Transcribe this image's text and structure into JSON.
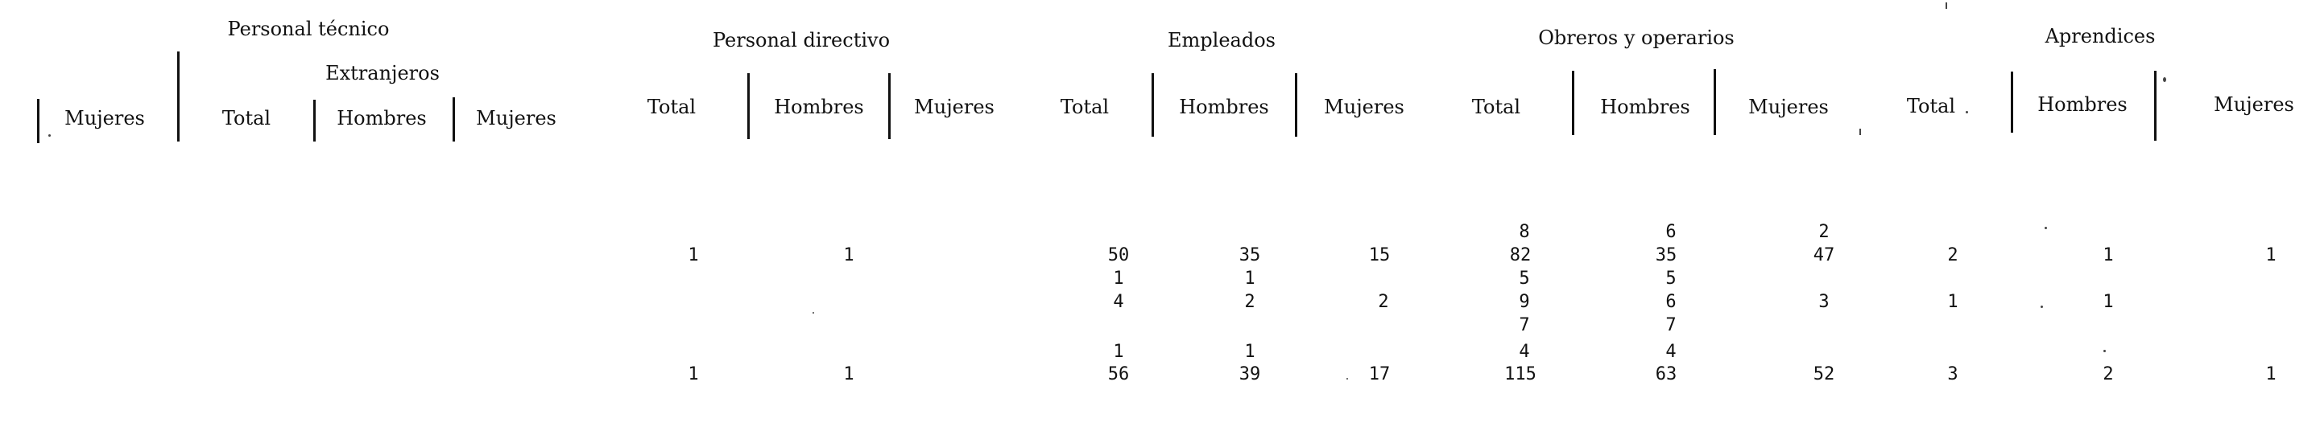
{
  "groups": {
    "personal_tecnico": "Personal técnico",
    "extranjeros": "Extranjeros",
    "personal_directivo": "Personal directivo",
    "empleados": "Empleados",
    "obreros": "Obreros y operarios",
    "aprendices": "Aprendices"
  },
  "columns": {
    "pt_mujeres": "Mujeres",
    "ext_total": "Total",
    "ext_hombres": "Hombres",
    "ext_mujeres": "Mujeres",
    "dir_total": "Total",
    "dir_hombres": "Hombres",
    "dir_mujeres": "Mujeres",
    "emp_total": "Total",
    "emp_hombres": "Hombres",
    "emp_mujeres": "Mujeres",
    "obr_total": "Total",
    "obr_hombres": "Hombres",
    "obr_mujeres": "Mujeres",
    "apr_total": "Total",
    "apr_hombres": "Hombres",
    "apr_mujeres": "Mujeres"
  },
  "rows": [
    {
      "obr_total": "8",
      "obr_hombres": "6",
      "obr_mujeres": "2"
    },
    {
      "dir_total": "1",
      "dir_hombres": "1",
      "emp_total": "50",
      "emp_hombres": "35",
      "emp_mujeres": "15",
      "obr_total": "82",
      "obr_hombres": "35",
      "obr_mujeres": "47",
      "apr_total": "2",
      "apr_hombres": "1",
      "apr_mujeres": "1"
    },
    {
      "emp_total": "1",
      "emp_hombres": "1",
      "obr_total": "5",
      "obr_hombres": "5"
    },
    {
      "emp_total": "4",
      "emp_hombres": "2",
      "emp_mujeres": "2",
      "obr_total": "9",
      "obr_hombres": "6",
      "obr_mujeres": "3",
      "apr_total": "1",
      "apr_hombres": "1"
    },
    {
      "obr_total": "7",
      "obr_hombres": "7"
    },
    {
      "emp_total": "1",
      "emp_hombres": "1",
      "obr_total": "4",
      "obr_hombres": "4"
    },
    {
      "dir_total": "1",
      "dir_hombres": "1",
      "emp_total": "56",
      "emp_hombres": "39",
      "emp_mujeres": "17",
      "obr_total": "115",
      "obr_hombres": "63",
      "obr_mujeres": "52",
      "apr_total": "3",
      "apr_hombres": "2",
      "apr_mujeres": "1"
    }
  ]
}
